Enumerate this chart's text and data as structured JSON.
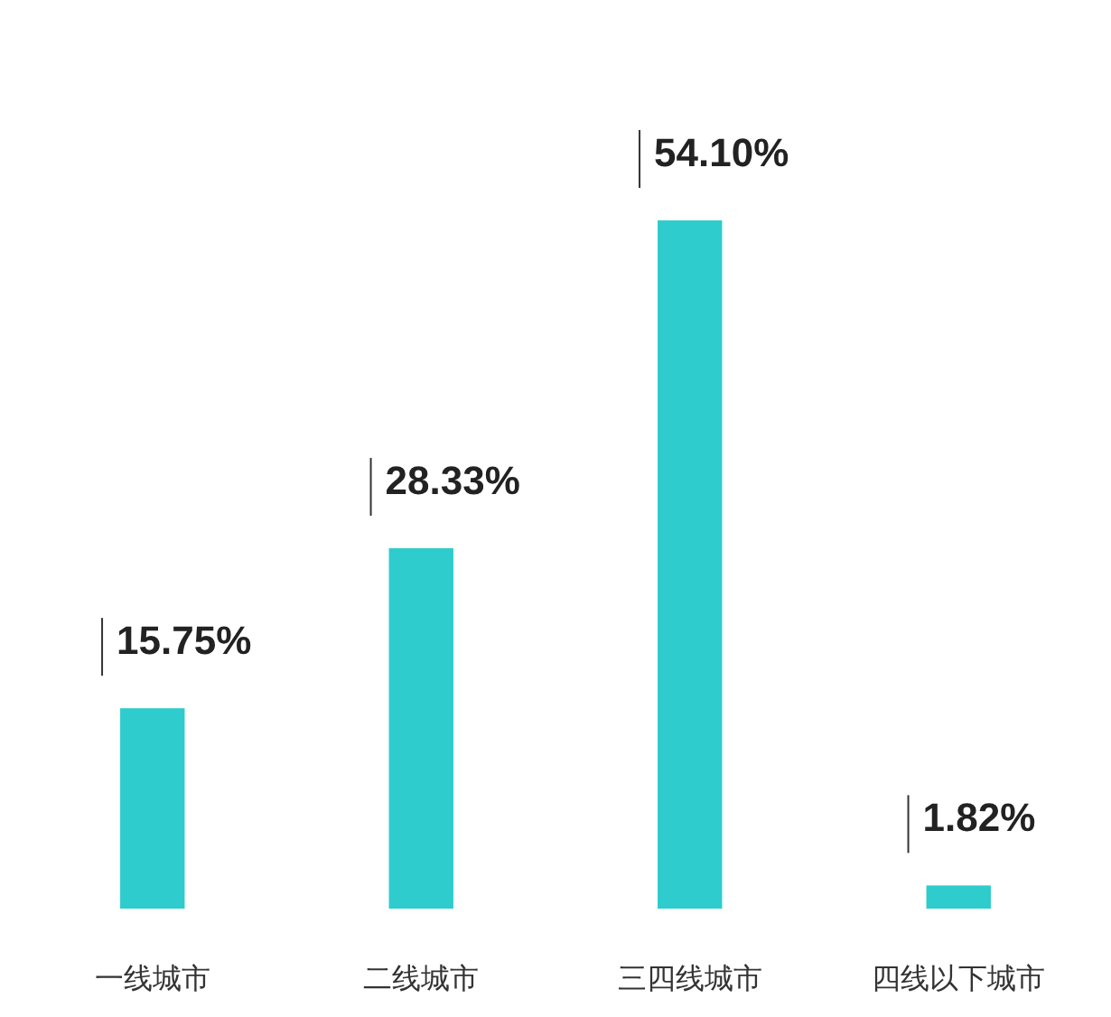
{
  "chart_data": {
    "type": "bar",
    "categories": [
      "一线城市",
      "二线城市",
      "三四线城市",
      "四线以下城市"
    ],
    "values": [
      15.75,
      28.33,
      54.1,
      1.82
    ],
    "value_labels": [
      "15.75%",
      "28.33%",
      "54.10%",
      "1.82%"
    ],
    "color": "#2ecccc"
  }
}
